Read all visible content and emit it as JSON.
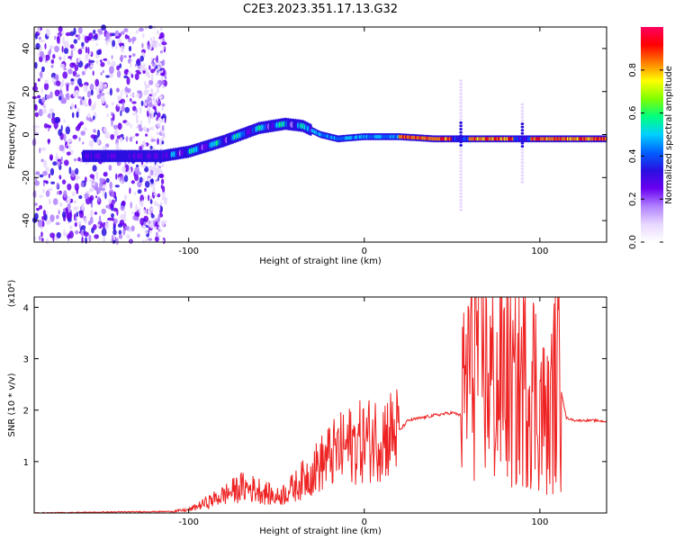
{
  "title": "C2E3.2023.351.17.13.G32",
  "chart_data": [
    {
      "type": "heatmap",
      "xlabel": "Height of straight line (km)",
      "ylabel": "Frequency (Hz)",
      "xlim": [
        -188,
        138
      ],
      "ylim": [
        -50,
        50
      ],
      "xticks": [
        -100,
        0,
        100
      ],
      "yticks": [
        -40,
        -20,
        0,
        20,
        40
      ],
      "colorbar": {
        "label": "Normalized spectral amplitude",
        "range": [
          0,
          1
        ],
        "ticks": [
          0.0,
          0.2,
          0.4,
          0.6,
          0.8
        ],
        "colors": [
          "#ffffff",
          "#e8d8ff",
          "#b080ff",
          "#6a00f0",
          "#2a10e0",
          "#0060ff",
          "#00d0ff",
          "#00ff80",
          "#80ff00",
          "#ffff00",
          "#ff8000",
          "#ff0000",
          "#ff0060"
        ]
      },
      "ridge": {
        "x": [
          -185,
          -160,
          -145,
          -130,
          -115,
          -100,
          -80,
          -60,
          -45,
          -35,
          -25,
          -15,
          0,
          20,
          40,
          60,
          80,
          100,
          120,
          138
        ],
        "frequency": [
          -10,
          -10,
          -10,
          -10,
          -10,
          -8,
          -3,
          3,
          5,
          4,
          0,
          -2,
          -1,
          -1,
          -2,
          -2,
          -2,
          -2,
          -2,
          -2
        ]
      }
    },
    {
      "type": "line",
      "xlabel": "Height of straight line (km)",
      "ylabel": "SNR (10 * v/v)",
      "yscale_label": "(x10⁴)",
      "xlim": [
        -188,
        138
      ],
      "ylim": [
        0,
        4.2
      ],
      "xticks": [
        -100,
        0,
        100
      ],
      "yticks": [
        1,
        2,
        3,
        4
      ],
      "color": "#ee2222",
      "series": [
        {
          "x": [
            -188,
            -140,
            -110,
            -100,
            -90,
            -80,
            -70,
            -60,
            -50,
            -40,
            -30,
            -20,
            -10,
            0,
            10,
            20,
            25,
            40,
            50,
            55,
            60,
            65,
            70,
            75,
            80,
            85,
            90,
            95,
            100,
            105,
            110,
            115,
            120,
            130,
            138
          ],
          "y": [
            0.0,
            0.02,
            0.03,
            0.06,
            0.2,
            0.35,
            0.5,
            0.45,
            0.3,
            0.5,
            0.8,
            1.1,
            1.3,
            1.4,
            1.5,
            1.6,
            1.8,
            1.9,
            1.95,
            1.9,
            3.0,
            3.6,
            2.8,
            2.3,
            2.9,
            2.2,
            2.6,
            2.7,
            2.1,
            1.7,
            2.8,
            1.85,
            1.8,
            1.8,
            1.78
          ]
        }
      ]
    }
  ]
}
